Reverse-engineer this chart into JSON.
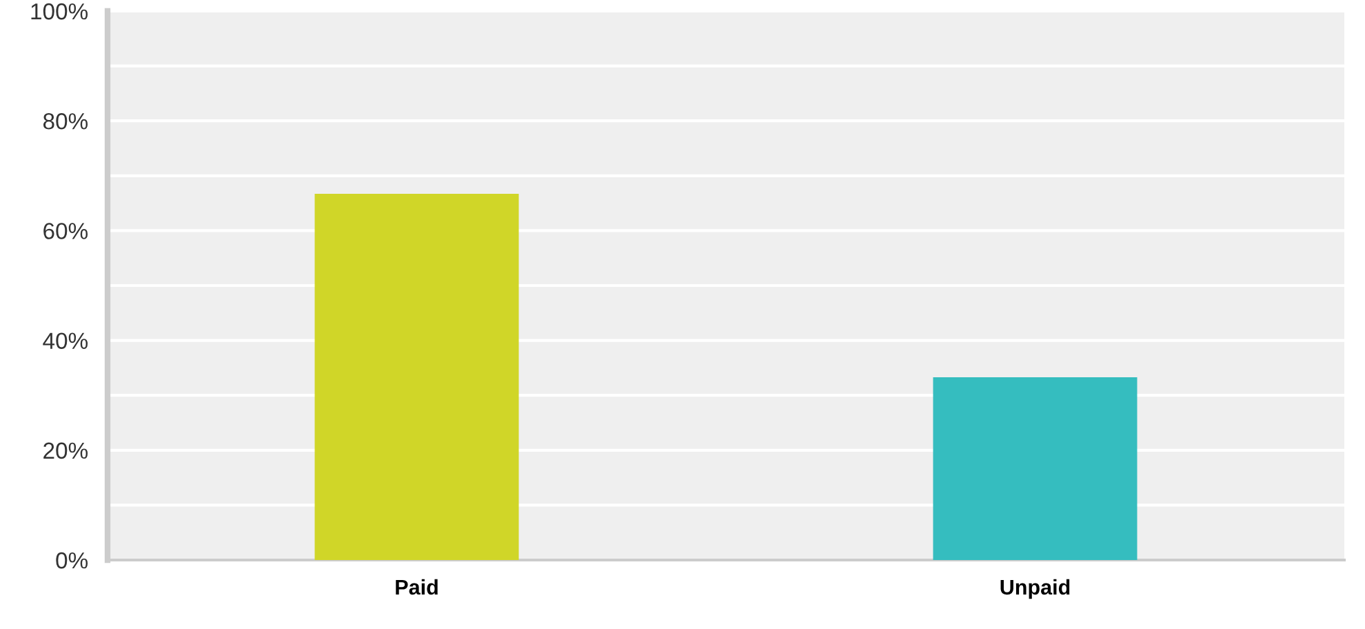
{
  "chart_data": {
    "type": "bar",
    "categories": [
      "Paid",
      "Unpaid"
    ],
    "values": [
      66.7,
      33.3
    ],
    "colors": [
      "#d0d628",
      "#35bdbf"
    ],
    "ylim": [
      0,
      100
    ],
    "yticks": [
      {
        "value": 0,
        "label": "0%"
      },
      {
        "value": 10,
        "label": null
      },
      {
        "value": 20,
        "label": "20%"
      },
      {
        "value": 30,
        "label": null
      },
      {
        "value": 40,
        "label": "40%"
      },
      {
        "value": 50,
        "label": null
      },
      {
        "value": 60,
        "label": "60%"
      },
      {
        "value": 70,
        "label": null
      },
      {
        "value": 80,
        "label": "80%"
      },
      {
        "value": 90,
        "label": null
      },
      {
        "value": 100,
        "label": "100%"
      }
    ],
    "grid": "y",
    "legend": false
  }
}
